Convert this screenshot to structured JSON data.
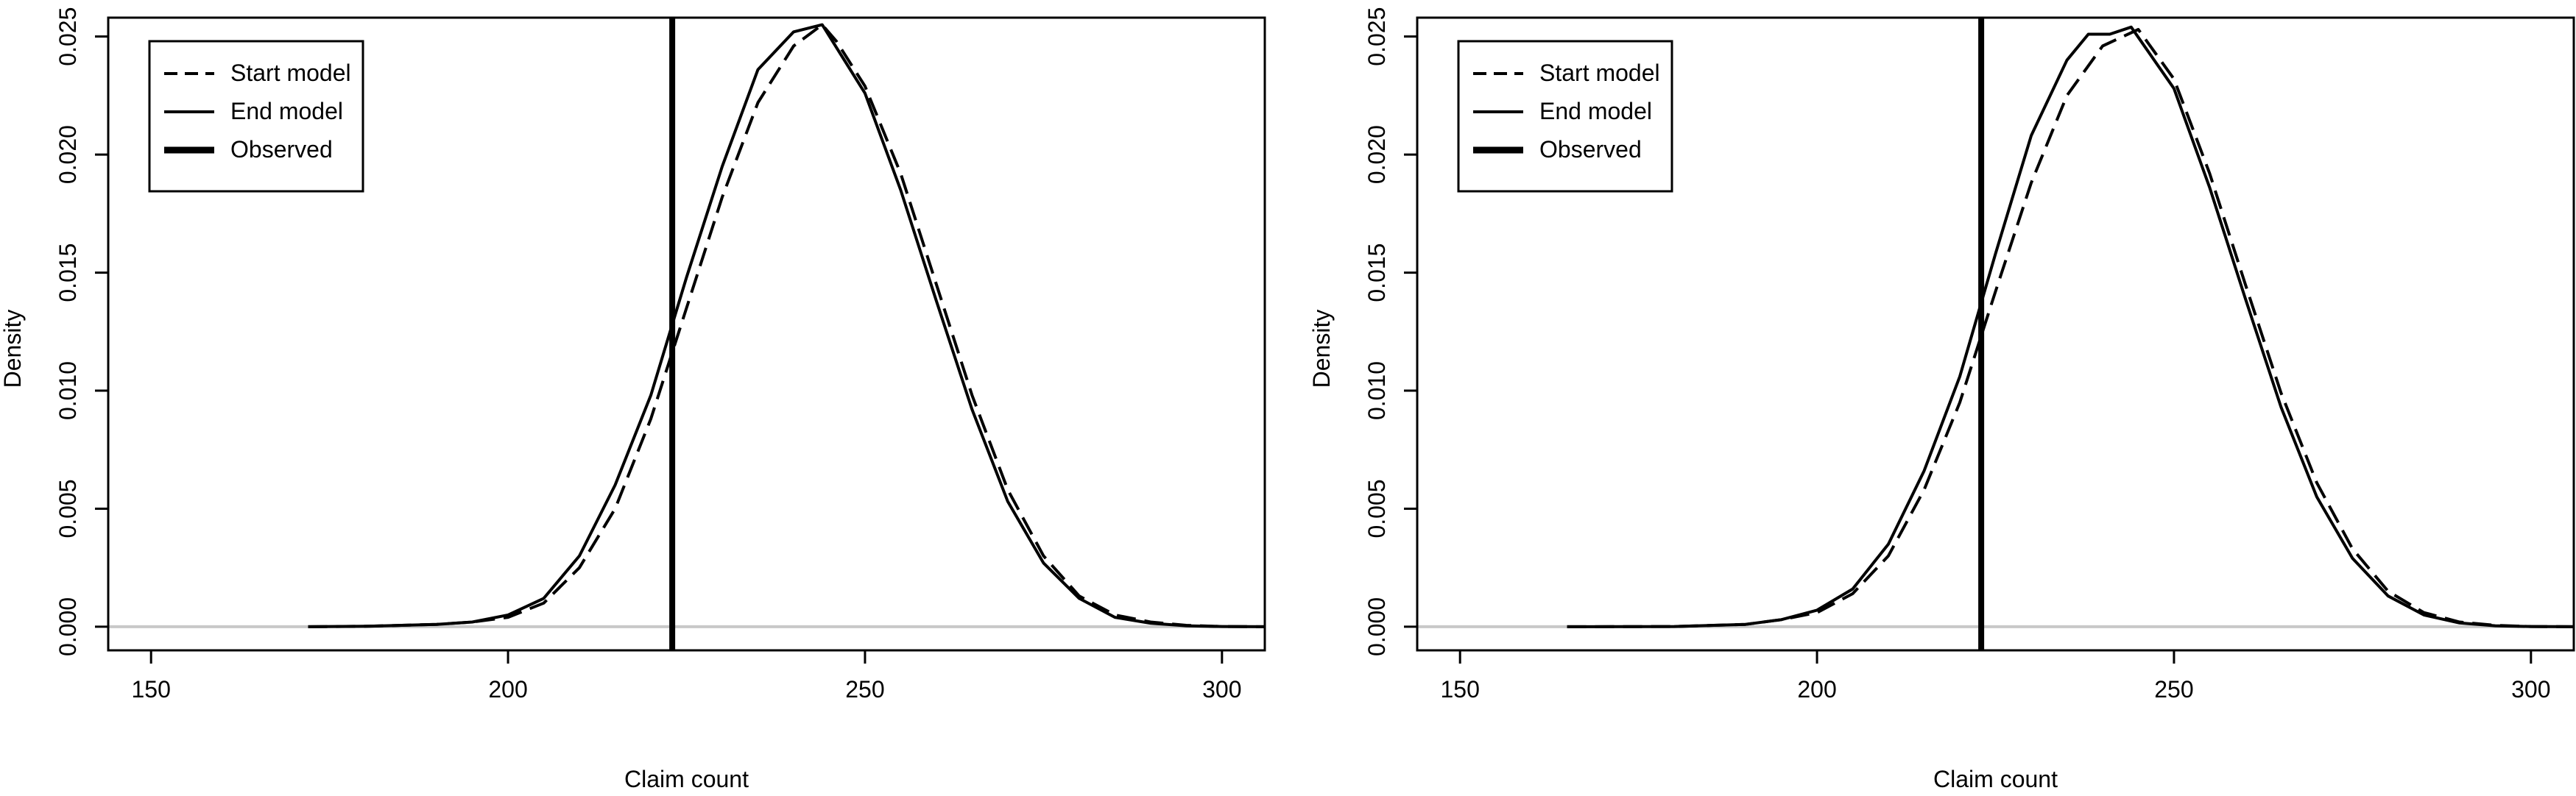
{
  "chart_data": [
    {
      "type": "line",
      "title": "",
      "xlabel": "Claim count",
      "ylabel": "Density",
      "xlim": [
        144,
        306
      ],
      "ylim": [
        -0.001,
        0.0258
      ],
      "x_ticks": [
        150,
        200,
        250,
        300
      ],
      "y_ticks": [
        0.0,
        0.005,
        0.01,
        0.015,
        0.02,
        0.025
      ],
      "x_tick_labels": [
        "150",
        "200",
        "250",
        "300"
      ],
      "y_tick_labels": [
        "0.000",
        "0.005",
        "0.010",
        "0.015",
        "0.020",
        "0.025"
      ],
      "grid": false,
      "legend_position": "top-left",
      "observed": 223,
      "legend": [
        {
          "label": "Start model",
          "style": "dashed"
        },
        {
          "label": "End model",
          "style": "solid"
        },
        {
          "label": "Observed",
          "style": "thick"
        }
      ],
      "series": [
        {
          "name": "Start model",
          "style": "dashed",
          "x": [
            172,
            180,
            190,
            195,
            200,
            205,
            210,
            215,
            220,
            225,
            230,
            235,
            240,
            244,
            246,
            250,
            255,
            260,
            265,
            270,
            275,
            280,
            285,
            290,
            295,
            300,
            306
          ],
          "y": [
            0.0,
            2e-05,
            0.0001,
            0.0002,
            0.0004,
            0.001,
            0.0025,
            0.005,
            0.0088,
            0.0135,
            0.0182,
            0.0222,
            0.0246,
            0.0255,
            0.0248,
            0.0229,
            0.0192,
            0.0145,
            0.0098,
            0.0058,
            0.003,
            0.0013,
            0.0005,
            0.0002,
            6e-05,
            1e-05,
            0.0
          ]
        },
        {
          "name": "End model",
          "style": "solid",
          "x": [
            172,
            180,
            190,
            195,
            200,
            205,
            210,
            215,
            220,
            225,
            230,
            235,
            240,
            244,
            250,
            255,
            260,
            265,
            270,
            275,
            280,
            285,
            290,
            295,
            300,
            306
          ],
          "y": [
            0.0,
            2e-05,
            0.0001,
            0.0002,
            0.0005,
            0.0012,
            0.003,
            0.006,
            0.0098,
            0.0148,
            0.0195,
            0.0236,
            0.0252,
            0.0255,
            0.0226,
            0.0185,
            0.0138,
            0.0092,
            0.0053,
            0.0027,
            0.0012,
            0.0004,
            0.00015,
            4e-05,
            1e-05,
            0.0
          ]
        }
      ]
    },
    {
      "type": "line",
      "title": "",
      "xlabel": "Claim count",
      "ylabel": "Density",
      "xlim": [
        144,
        306
      ],
      "ylim": [
        -0.001,
        0.0258
      ],
      "x_ticks": [
        150,
        200,
        250,
        300
      ],
      "y_ticks": [
        0.0,
        0.005,
        0.01,
        0.015,
        0.02,
        0.025
      ],
      "x_tick_labels": [
        "150",
        "200",
        "250",
        "300"
      ],
      "y_tick_labels": [
        "0.000",
        "0.005",
        "0.010",
        "0.015",
        "0.020",
        "0.025"
      ],
      "grid": false,
      "legend_position": "top-left",
      "observed": 223,
      "legend": [
        {
          "label": "Start model",
          "style": "dashed"
        },
        {
          "label": "End model",
          "style": "solid"
        },
        {
          "label": "Observed",
          "style": "thick"
        }
      ],
      "series": [
        {
          "name": "Start model",
          "style": "dashed",
          "x": [
            165,
            180,
            190,
            195,
            200,
            205,
            210,
            215,
            220,
            225,
            230,
            235,
            240,
            245,
            250,
            255,
            260,
            265,
            270,
            275,
            280,
            285,
            290,
            295,
            300,
            306
          ],
          "y": [
            0.0,
            1e-05,
            0.0001,
            0.0003,
            0.0006,
            0.0014,
            0.003,
            0.0058,
            0.0095,
            0.0142,
            0.0188,
            0.0225,
            0.0246,
            0.0253,
            0.0232,
            0.0192,
            0.0145,
            0.0099,
            0.0061,
            0.0033,
            0.0015,
            0.0006,
            0.0002,
            6e-05,
            1e-05,
            0.0
          ]
        },
        {
          "name": "End model",
          "style": "solid",
          "x": [
            165,
            180,
            190,
            195,
            200,
            205,
            210,
            215,
            220,
            225,
            230,
            235,
            238,
            241,
            244,
            250,
            255,
            260,
            265,
            270,
            275,
            280,
            285,
            290,
            295,
            300,
            306
          ],
          "y": [
            0.0,
            1e-05,
            0.0001,
            0.0003,
            0.0007,
            0.0016,
            0.0035,
            0.0066,
            0.0106,
            0.0158,
            0.0208,
            0.024,
            0.0251,
            0.0251,
            0.0254,
            0.0228,
            0.0186,
            0.0139,
            0.0093,
            0.0055,
            0.0029,
            0.0013,
            0.0005,
            0.00016,
            4e-05,
            1e-05,
            0.0
          ]
        }
      ]
    }
  ]
}
